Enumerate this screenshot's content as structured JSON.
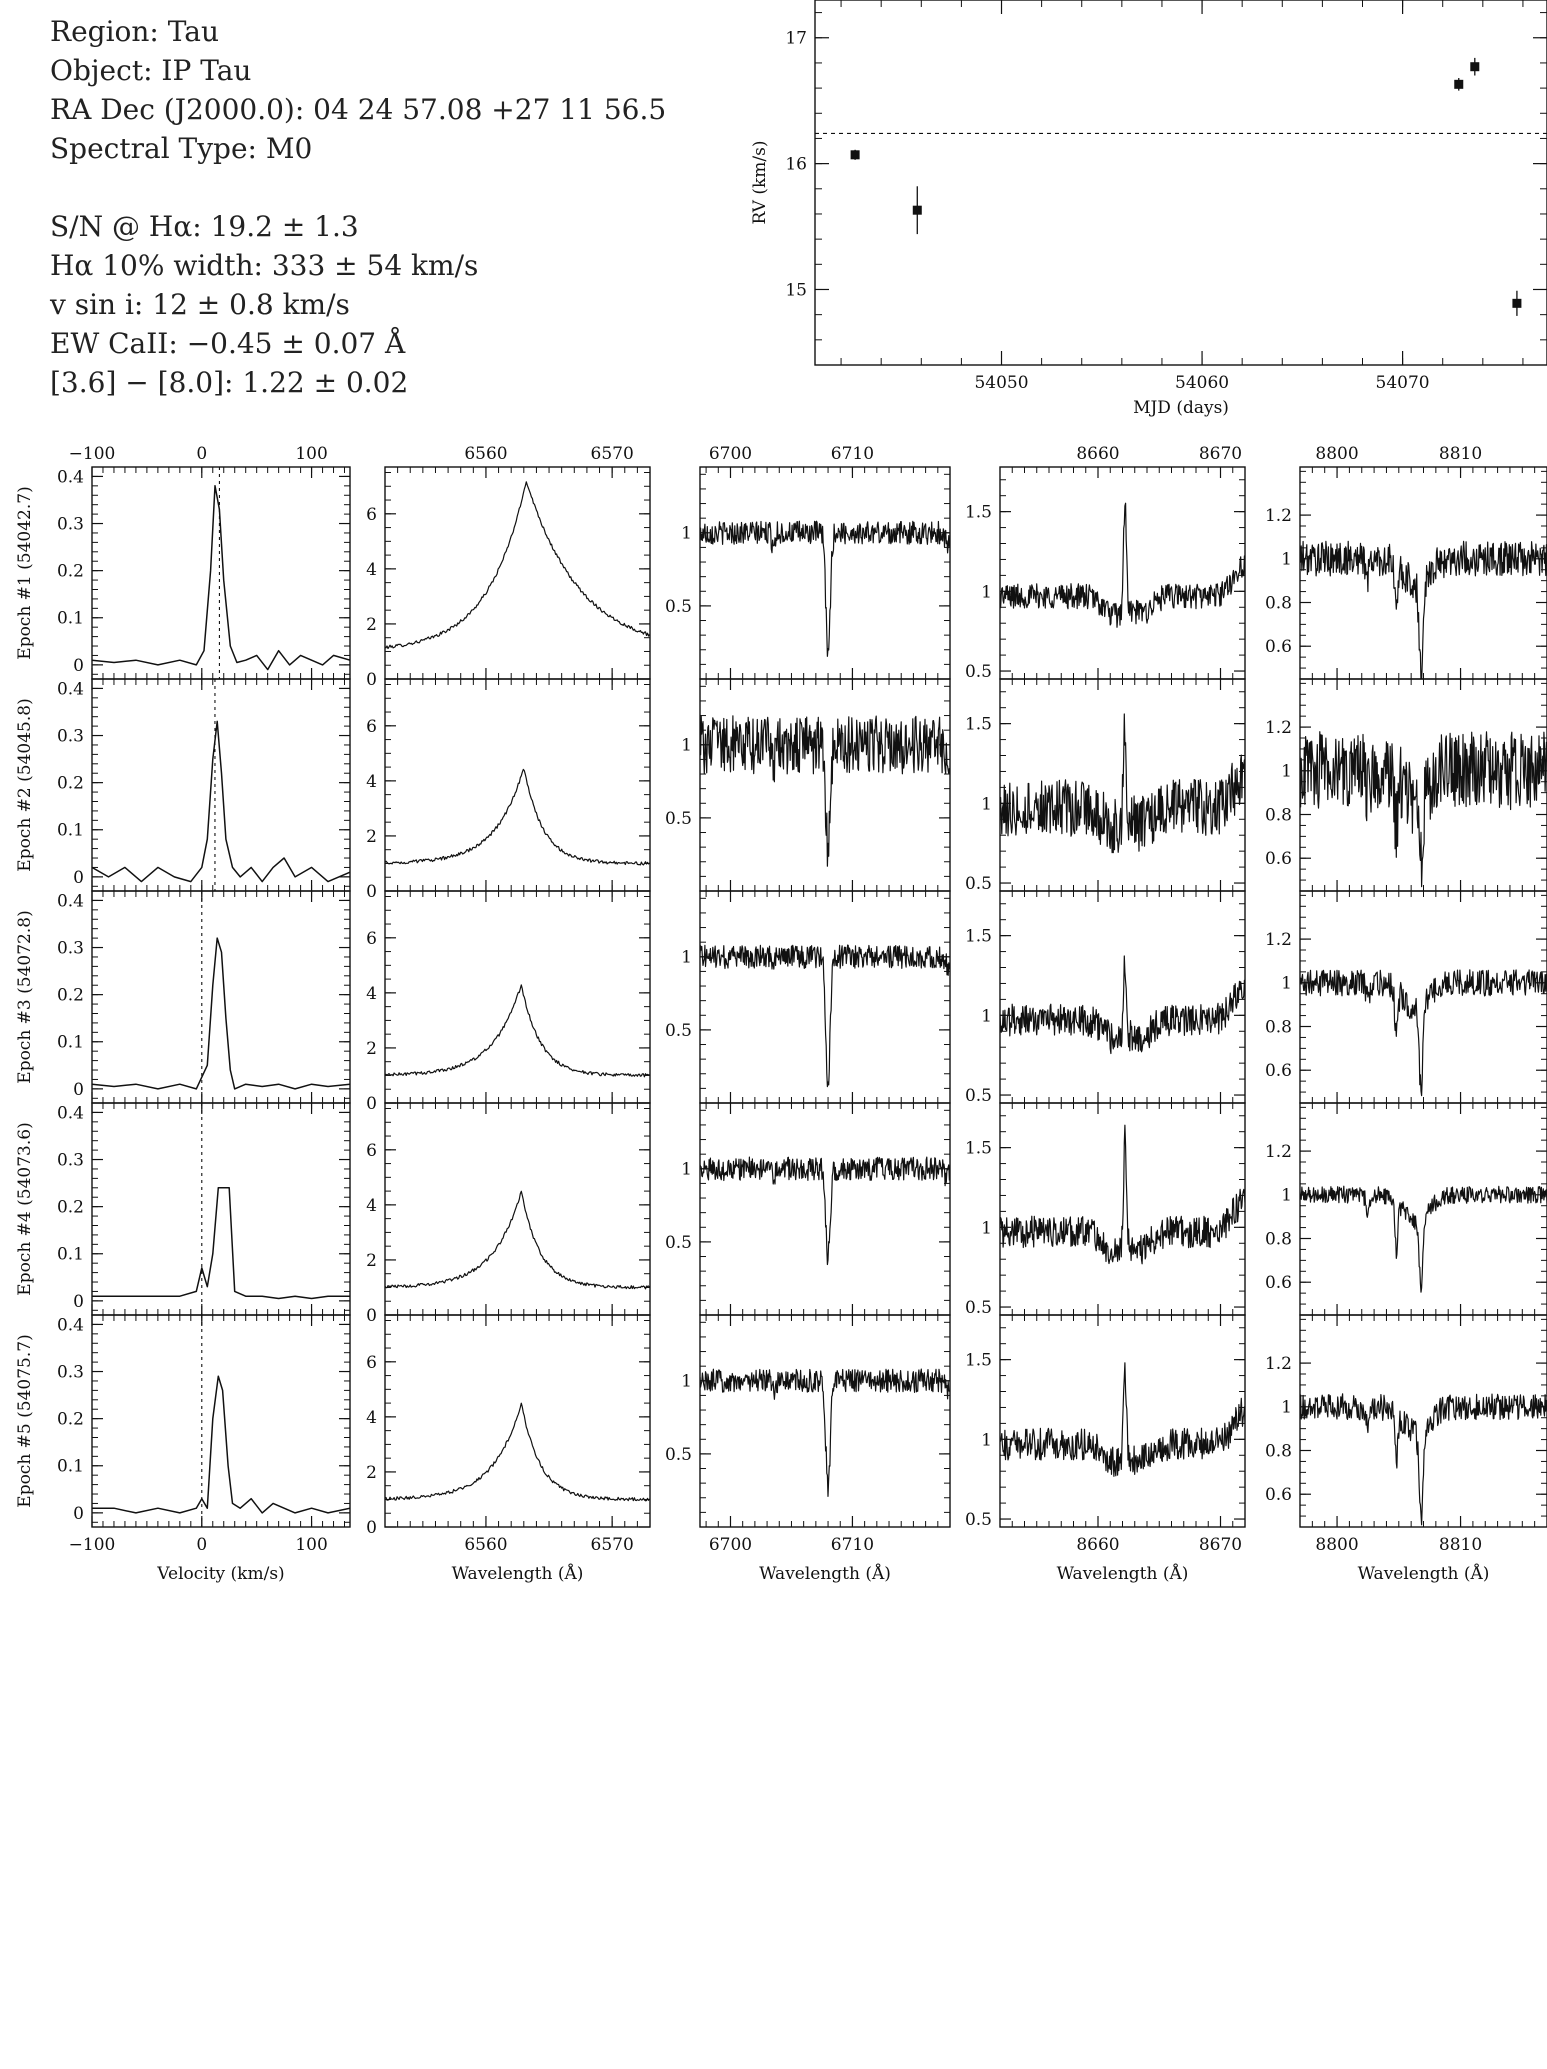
{
  "info": {
    "region": "Region: Tau",
    "object": "Object: IP Tau",
    "radec": "RA Dec (J2000.0): 04 24 57.08 +27 11 56.5",
    "sptype": "Spectral Type: M0",
    "sn": "S/N @ Hα: 19.2 ± 1.3",
    "ha_width": "Hα 10% width: 333 ± 54 km/s",
    "vsini": "v sin i: 12 ± 0.8 km/s",
    "ew_ca": "EW CaII: −0.45 ± 0.07 Å",
    "irac": "[3.6] − [8.0]: 1.22 ± 0.02"
  },
  "chart_data": [
    {
      "type": "scatter",
      "xlabel": "MJD (days)",
      "ylabel": "RV (km/s)",
      "xlim": [
        54040.7,
        54077.2
      ],
      "ylim": [
        14.4,
        17.3
      ],
      "xticks": [
        54050,
        54060,
        54070
      ],
      "yticks": [
        15,
        16,
        17
      ],
      "reference_line": 16.24,
      "points": [
        {
          "x": 54042.7,
          "y": 16.07,
          "err": 0.04
        },
        {
          "x": 54045.8,
          "y": 15.63,
          "err": 0.19
        },
        {
          "x": 54072.8,
          "y": 16.63,
          "err": 0.05
        },
        {
          "x": 54073.6,
          "y": 16.77,
          "err": 0.07
        },
        {
          "x": 54075.7,
          "y": 14.89,
          "err": 0.1
        }
      ]
    },
    {
      "type": "line",
      "name": "grid",
      "epochs": [
        "Epoch #1 (54042.7)",
        "Epoch #2 (54045.8)",
        "Epoch #3 (54072.8)",
        "Epoch #4 (54073.6)",
        "Epoch #5 (54075.7)"
      ],
      "columns": [
        {
          "xlabel": "Velocity (km/s)",
          "xlim": [
            -100,
            135
          ],
          "xticks": [
            -100,
            0,
            100
          ],
          "ylim": [
            -0.03,
            0.42
          ],
          "yticks": [
            0,
            0.1,
            0.2,
            0.3,
            0.4
          ],
          "rv_lines": [
            16.07,
            12.0,
            0.0,
            0.0,
            0.0
          ]
        },
        {
          "xlabel": "Wavelength (Å)",
          "xlim": [
            6552,
            6573
          ],
          "xticks": [
            6560,
            6570
          ],
          "ylim": [
            0,
            7.7
          ],
          "yticks": [
            0,
            2,
            4,
            6
          ]
        },
        {
          "xlabel": "Wavelength (Å)",
          "xlim": [
            6697.5,
            6718
          ],
          "xticks": [
            6700,
            6710
          ],
          "ylim": [
            0,
            1.45
          ],
          "yticks": [
            0.5,
            1
          ]
        },
        {
          "xlabel": "Wavelength (Å)",
          "xlim": [
            8652,
            8672
          ],
          "xticks": [
            8660,
            8670
          ],
          "ylim": [
            0.45,
            1.78
          ],
          "yticks": [
            0.5,
            1,
            1.5
          ]
        },
        {
          "xlabel": "Wavelength (Å)",
          "xlim": [
            8797,
            8817
          ],
          "xticks": [
            8800,
            8810
          ],
          "ylim": [
            0.45,
            1.42
          ],
          "yticks": [
            0.6,
            0.8,
            1,
            1.2
          ]
        }
      ],
      "ccf": [
        {
          "x": [
            -100,
            -80,
            -60,
            -40,
            -20,
            -5,
            2,
            8,
            12,
            16,
            20,
            26,
            32,
            40,
            50,
            60,
            70,
            80,
            90,
            100,
            110,
            120,
            135
          ],
          "y": [
            0.01,
            0.005,
            0.01,
            0,
            0.01,
            0,
            0.03,
            0.2,
            0.38,
            0.33,
            0.18,
            0.04,
            0.005,
            0.01,
            0.02,
            -0.01,
            0.03,
            0.0,
            0.02,
            0.01,
            0.0,
            0.02,
            0.01
          ]
        },
        {
          "x": [
            -100,
            -85,
            -70,
            -55,
            -40,
            -25,
            -10,
            0,
            5,
            10,
            14,
            18,
            22,
            28,
            35,
            45,
            55,
            65,
            75,
            85,
            100,
            115,
            135
          ],
          "y": [
            0.02,
            0.0,
            0.02,
            -0.01,
            0.02,
            0.0,
            -0.01,
            0.02,
            0.08,
            0.25,
            0.33,
            0.22,
            0.08,
            0.02,
            0.0,
            0.02,
            -0.01,
            0.02,
            0.04,
            0.0,
            0.02,
            -0.01,
            0.01
          ]
        },
        {
          "x": [
            -100,
            -80,
            -60,
            -40,
            -20,
            -5,
            5,
            10,
            14,
            18,
            22,
            26,
            30,
            40,
            55,
            70,
            85,
            100,
            115,
            135
          ],
          "y": [
            0.01,
            0.005,
            0.01,
            0,
            0.01,
            0.0,
            0.05,
            0.22,
            0.32,
            0.29,
            0.15,
            0.04,
            0.0,
            0.01,
            0.005,
            0.01,
            0.0,
            0.01,
            0.005,
            0.01
          ]
        },
        {
          "x": [
            -100,
            -80,
            -60,
            -40,
            -20,
            -5,
            0,
            5,
            10,
            15,
            20,
            25,
            30,
            40,
            55,
            70,
            85,
            100,
            115,
            135
          ],
          "y": [
            0.01,
            0.01,
            0.01,
            0.01,
            0.01,
            0.02,
            0.07,
            0.03,
            0.1,
            0.24,
            0.24,
            0.24,
            0.02,
            0.01,
            0.01,
            0.005,
            0.01,
            0.005,
            0.01,
            0.01
          ]
        },
        {
          "x": [
            -100,
            -80,
            -60,
            -40,
            -20,
            -5,
            0,
            5,
            10,
            15,
            19,
            24,
            28,
            35,
            45,
            55,
            65,
            75,
            85,
            100,
            115,
            135
          ],
          "y": [
            0.01,
            0.01,
            0.0,
            0.01,
            0.0,
            0.01,
            0.03,
            0.01,
            0.2,
            0.29,
            0.26,
            0.1,
            0.02,
            0.01,
            0.03,
            0.0,
            0.02,
            0.01,
            0.0,
            0.01,
            0.0,
            0.01
          ]
        }
      ],
      "halpha": [
        {
          "peak": 6.2,
          "center": 6563.2,
          "wblue": 3.0,
          "wred": 4.2
        },
        {
          "peak": 3.5,
          "center": 6563.0,
          "wblue": 2.2,
          "wred": 1.5
        },
        {
          "peak": 3.3,
          "center": 6562.8,
          "wblue": 2.2,
          "wred": 1.5
        },
        {
          "peak": 3.5,
          "center": 6562.8,
          "wblue": 2.2,
          "wred": 1.5
        },
        {
          "peak": 3.5,
          "center": 6562.8,
          "wblue": 2.2,
          "wred": 1.5
        }
      ],
      "lithium": [
        {
          "depth": 0.82,
          "noise": 0.04
        },
        {
          "depth": 0.7,
          "noise": 0.1
        },
        {
          "depth": 0.85,
          "noise": 0.04
        },
        {
          "depth": 0.6,
          "noise": 0.04
        },
        {
          "depth": 0.75,
          "noise": 0.04
        }
      ],
      "cat_8662": [
        {
          "peak": 0.68,
          "noise": 0.04
        },
        {
          "peak": 0.58,
          "noise": 0.09
        },
        {
          "peak": 0.48,
          "noise": 0.05
        },
        {
          "peak": 0.68,
          "noise": 0.05
        },
        {
          "peak": 0.55,
          "noise": 0.05
        }
      ],
      "cat_8807": [
        {
          "depth": 0.42,
          "noise": 0.04
        },
        {
          "depth": 0.3,
          "noise": 0.09
        },
        {
          "depth": 0.38,
          "noise": 0.03
        },
        {
          "depth": 0.3,
          "noise": 0.02
        },
        {
          "depth": 0.4,
          "noise": 0.03
        }
      ]
    }
  ]
}
